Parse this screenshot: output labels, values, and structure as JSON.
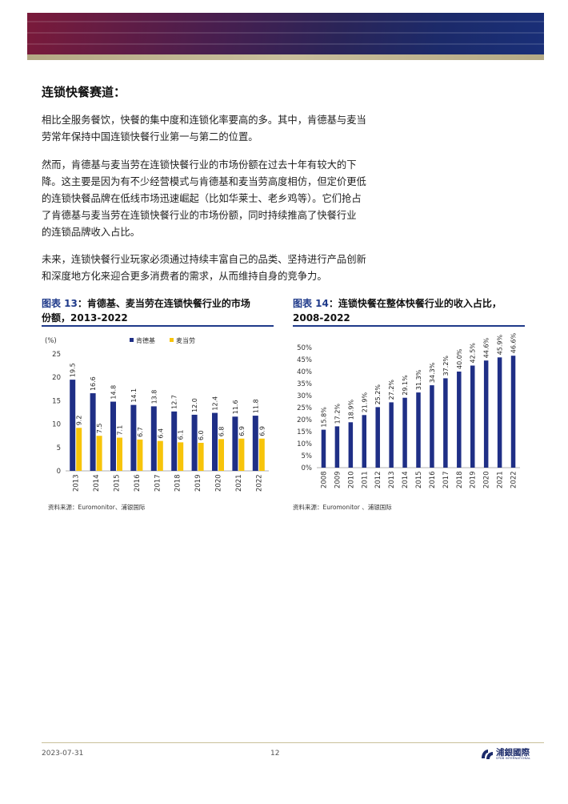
{
  "header": {},
  "section": {
    "title": "连锁快餐赛道："
  },
  "paragraphs": [
    [
      "相比全服务餐饮，快餐的集中度和连锁化率要高的多。其中，肯德基与麦当",
      "劳常年保持中国连锁快餐行业第一与第二的位置。"
    ],
    [
      "然而，肯德基与麦当劳在连锁快餐行业的市场份额在过去十年有较大的下",
      "降。这主要是因为有不少经营模式与肯德基和麦当劳高度相仿，但定价更低",
      "的连锁快餐品牌在低线市场迅速崛起（比如华莱士、老乡鸡等）。它们抢占",
      "了肯德基与麦当劳在连锁快餐行业的市场份额，同时持续推高了快餐行业",
      "的连锁品牌收入占比。"
    ],
    [
      "未来，连锁快餐行业玩家必须通过持续丰富自己的品类、坚持进行产品创新",
      "和深度地方化来迎合更多消费者的需求，从而维持自身的竞争力。"
    ]
  ],
  "figure13": {
    "label": "图表 13",
    "title_line1": "：肯德基、麦当劳在连锁快餐行业的市场",
    "title_line2": "份额，2013-2022",
    "source": "资料来源：Euromonitor、浦银国际"
  },
  "figure14": {
    "label": "图表 14",
    "title_line1": "：连锁快餐在整体快餐行业的收入占比，",
    "title_line2": "2008-2022",
    "source": "资料来源：Euromonitor 、浦银国际"
  },
  "chart_data": [
    {
      "type": "bar",
      "ylabel": "(%)",
      "ylim": [
        0,
        25
      ],
      "yticks": [
        "0",
        "5",
        "10",
        "15",
        "20",
        "25"
      ],
      "categories": [
        "2013",
        "2014",
        "2015",
        "2016",
        "2017",
        "2018",
        "2019",
        "2020",
        "2021",
        "2022"
      ],
      "legend_position": "top",
      "series": [
        {
          "name": "肯德基",
          "color": "#1f2f86",
          "values": [
            19.5,
            16.6,
            14.8,
            14.1,
            13.8,
            12.7,
            12.0,
            12.4,
            11.6,
            11.8
          ],
          "labels": [
            "19.5",
            "16.6",
            "14.8",
            "14.1",
            "13.8",
            "12.7",
            "12.0",
            "12.4",
            "11.6",
            "11.8"
          ]
        },
        {
          "name": "麦当劳",
          "color": "#f7c40a",
          "values": [
            9.2,
            7.5,
            7.1,
            6.7,
            6.4,
            6.1,
            6.0,
            6.8,
            6.9,
            6.9
          ],
          "labels": [
            "9.2",
            "7.5",
            "7.1",
            "6.7",
            "6.4",
            "6.1",
            "6.0",
            "6.8",
            "6.9",
            "6.9"
          ]
        }
      ],
      "grid": false
    },
    {
      "type": "bar",
      "ylim": [
        0,
        50
      ],
      "yticks": [
        "0%",
        "5%",
        "10%",
        "15%",
        "20%",
        "25%",
        "30%",
        "35%",
        "40%",
        "45%",
        "50%"
      ],
      "categories": [
        "2008",
        "2009",
        "2010",
        "2011",
        "2012",
        "2013",
        "2014",
        "2015",
        "2016",
        "2017",
        "2018",
        "2019",
        "2020",
        "2021",
        "2022"
      ],
      "series": [
        {
          "color": "#1f2f86",
          "values": [
            15.8,
            17.2,
            18.9,
            21.9,
            25.2,
            27.2,
            29.1,
            31.3,
            34.3,
            37.2,
            40.0,
            42.5,
            44.6,
            45.9,
            46.6
          ],
          "labels": [
            "15.8%",
            "17.2%",
            "18.9%",
            "21.9%",
            "25.2%",
            "27.2%",
            "29.1%",
            "31.3%",
            "34.3%",
            "37.2%",
            "40.0%",
            "42.5%",
            "44.6%",
            "45.9%",
            "46.6%"
          ]
        }
      ],
      "grid": false
    }
  ],
  "footer": {
    "date": "2023-07-31",
    "page": "12",
    "logo_cn": "浦銀國際",
    "logo_en": "SPDB INTERNATIONAL"
  }
}
